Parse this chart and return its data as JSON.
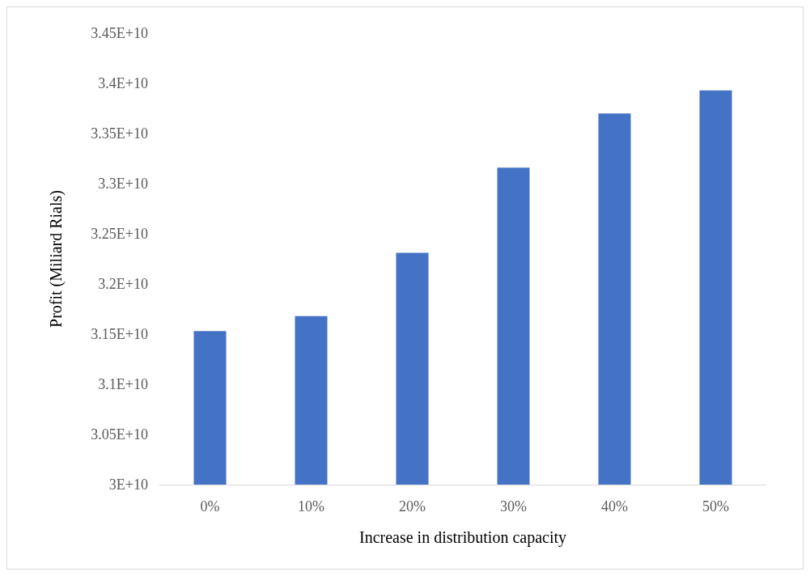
{
  "chart_data": {
    "type": "bar",
    "xlabel": "Increase in distribution capacity",
    "ylabel": "Profit (Miliard Rials)",
    "categories": [
      "0%",
      "10%",
      "20%",
      "30%",
      "40%",
      "50%"
    ],
    "values": [
      31530000000,
      31680000000,
      32310000000,
      33160000000,
      33700000000,
      33930000000
    ],
    "color": "#4472c4",
    "ylim": [
      30000000000,
      34500000000
    ],
    "yticks": [
      {
        "value": 30000000000,
        "label": "3E+10"
      },
      {
        "value": 30500000000,
        "label": "3.05E+10"
      },
      {
        "value": 31000000000,
        "label": "3.1E+10"
      },
      {
        "value": 31500000000,
        "label": "3.15E+10"
      },
      {
        "value": 32000000000,
        "label": "3.2E+10"
      },
      {
        "value": 32500000000,
        "label": "3.25E+10"
      },
      {
        "value": 33000000000,
        "label": "3.3E+10"
      },
      {
        "value": 33500000000,
        "label": "3.35E+10"
      },
      {
        "value": 34000000000,
        "label": "3.4E+10"
      },
      {
        "value": 34500000000,
        "label": "3.45E+10"
      }
    ],
    "grid": false
  }
}
